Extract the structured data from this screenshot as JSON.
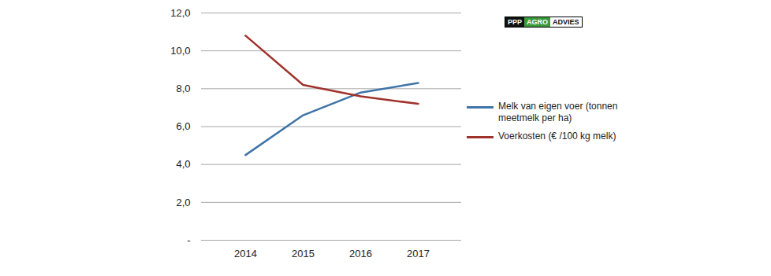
{
  "chart_data": {
    "type": "line",
    "categories": [
      "2014",
      "2015",
      "2016",
      "2017"
    ],
    "series": [
      {
        "name": "Melk van eigen voer (tonnen meetmelk per ha)",
        "color": "#3f74a8",
        "values": [
          4.5,
          6.6,
          7.8,
          8.3
        ]
      },
      {
        "name": "Voerkosten (€ /100 kg melk)",
        "color": "#a0322c",
        "values": [
          10.8,
          8.2,
          7.6,
          7.2
        ]
      }
    ],
    "ylim": [
      0,
      12
    ],
    "yticks": [
      {
        "value": 0,
        "label": "-"
      },
      {
        "value": 2,
        "label": "2,0"
      },
      {
        "value": 4,
        "label": "4,0"
      },
      {
        "value": 6,
        "label": "6,0"
      },
      {
        "value": 8,
        "label": "8,0"
      },
      {
        "value": 10,
        "label": "10,0"
      },
      {
        "value": 12,
        "label": "12,0"
      }
    ],
    "grid": true,
    "legend": "right",
    "annotations": [
      "PPP AGRO ADVIES"
    ]
  }
}
